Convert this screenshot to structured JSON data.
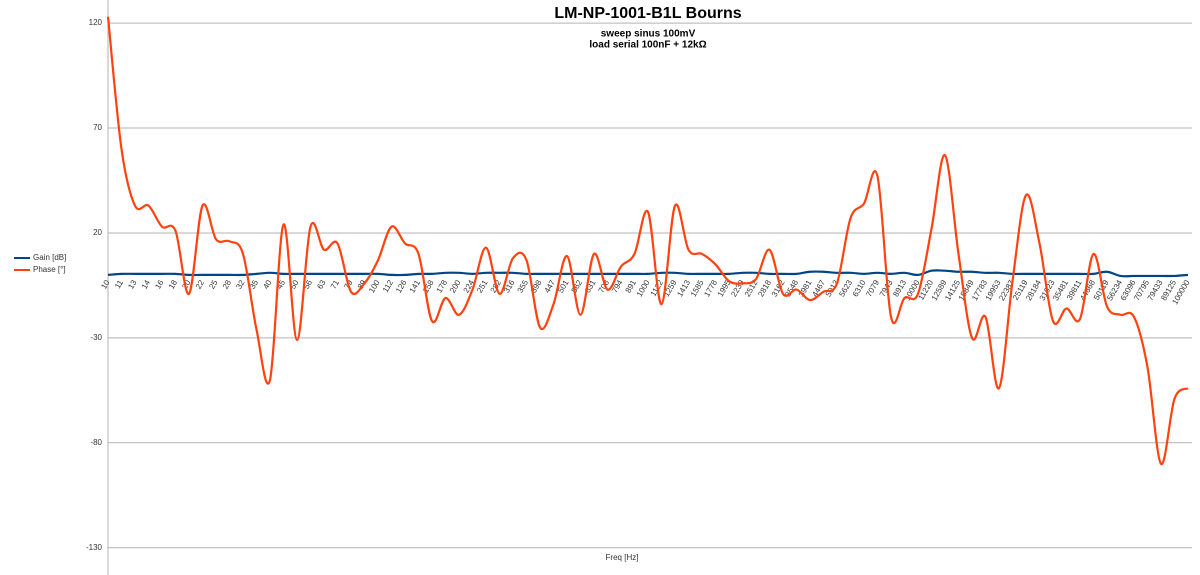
{
  "chart_data": {
    "type": "line",
    "title": "LM-NP-1001-B1L Bourns",
    "subtitle": [
      "sweep sinus 100mV",
      "load serial 100nF + 12kΩ"
    ],
    "x_label": "Freq [Hz]",
    "categories": [
      "10",
      "11",
      "13",
      "14",
      "16",
      "18",
      "20",
      "22",
      "25",
      "28",
      "32",
      "35",
      "40",
      "45",
      "50",
      "56",
      "63",
      "71",
      "79",
      "89",
      "100",
      "112",
      "126",
      "141",
      "158",
      "178",
      "200",
      "224",
      "251",
      "282",
      "316",
      "355",
      "398",
      "447",
      "501",
      "562",
      "631",
      "708",
      "794",
      "891",
      "1000",
      "1122",
      "1259",
      "1413",
      "1585",
      "1778",
      "1995",
      "2239",
      "2512",
      "2818",
      "3162",
      "3548",
      "3981",
      "4467",
      "5012",
      "5623",
      "6310",
      "7079",
      "7943",
      "8913",
      "10000",
      "11220",
      "12589",
      "14125",
      "15849",
      "17783",
      "19953",
      "22387",
      "25119",
      "28184",
      "31623",
      "35481",
      "39811",
      "44668",
      "50119",
      "56234",
      "63096",
      "70795",
      "79433",
      "89125",
      "100000"
    ],
    "series": [
      {
        "name": "Gain [dB]",
        "color": "#004586",
        "values": [
          0,
          0.5,
          0.5,
          0.5,
          0.5,
          0.5,
          0,
          0,
          0,
          0,
          0,
          0.5,
          1,
          0.5,
          0.5,
          0.5,
          0.5,
          0.5,
          0.5,
          0.5,
          0.5,
          0,
          0,
          0.5,
          0.5,
          1,
          1,
          0.5,
          1,
          1,
          1,
          0.5,
          0.5,
          0.5,
          0.5,
          0.5,
          0.5,
          0.5,
          0.5,
          0.5,
          0.5,
          1,
          1,
          0.5,
          0.5,
          0.5,
          0.5,
          1,
          1,
          0.5,
          0.5,
          0.5,
          1.5,
          1.5,
          1,
          1,
          0.5,
          1,
          0.5,
          1,
          0,
          2,
          2,
          1.5,
          1.5,
          1,
          1,
          0.5,
          0.5,
          0.5,
          0.5,
          0.5,
          0.5,
          0.5,
          1.5,
          -0.5,
          -0.5,
          -0.5,
          -0.5,
          -0.5,
          0
        ]
      },
      {
        "name": "Phase [°]",
        "color": "#ff420e",
        "values": [
          123,
          60,
          33,
          33,
          23,
          21,
          -9,
          33,
          17,
          16,
          10,
          -26,
          -50,
          24,
          -31,
          23,
          12,
          15,
          -8,
          -4,
          7,
          23,
          15,
          10,
          -22,
          -11,
          -19,
          -7,
          13,
          -9,
          8,
          7,
          -25,
          -14,
          9,
          -19,
          10,
          -7,
          4,
          10,
          30,
          -14,
          33,
          12,
          10,
          5,
          -3,
          -4,
          -2,
          12,
          -9,
          -7,
          -12,
          -8,
          -4,
          27,
          34,
          47,
          -20,
          -11,
          -9,
          22,
          57,
          10,
          -30,
          -20,
          -54,
          -3,
          38,
          15,
          -22,
          -16,
          -21,
          10,
          -15,
          -19,
          -20,
          -44,
          -90,
          -59,
          -54
        ]
      }
    ],
    "ylim": [
      -143,
      131
    ],
    "yticks": [
      -130,
      -80,
      -30,
      20,
      70,
      120
    ],
    "grid": true,
    "legend": "left"
  }
}
